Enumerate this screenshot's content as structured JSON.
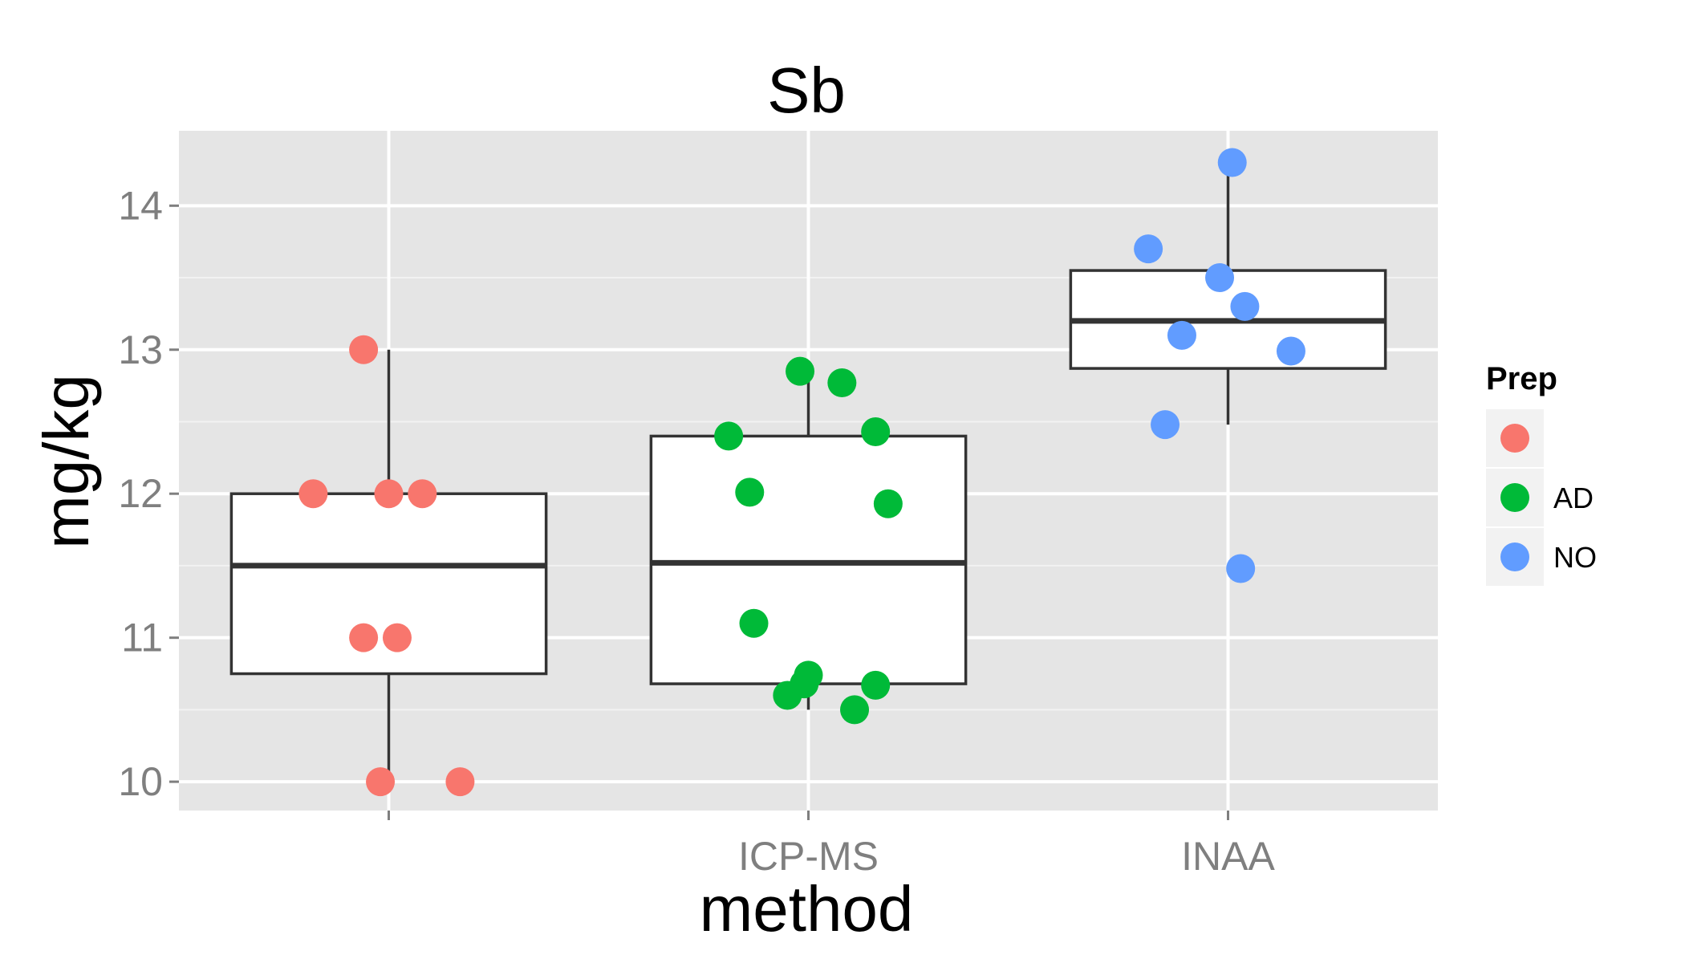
{
  "chart_data": {
    "type": "boxplot",
    "title": "Sb",
    "xlabel": "method",
    "ylabel": "mg/kg",
    "categories": [
      "",
      "ICP-MS",
      "INAA"
    ],
    "ylim": [
      9.8,
      14.52
    ],
    "yticks": [
      10,
      11,
      12,
      13,
      14
    ],
    "grid": true,
    "legend": {
      "title": "Prep",
      "position": "right",
      "entries": [
        {
          "label": "",
          "color": "#F8766D"
        },
        {
          "label": "AD",
          "color": "#00BA38"
        },
        {
          "label": "NO",
          "color": "#619CFF"
        }
      ]
    },
    "boxes": [
      {
        "category": "",
        "min": 10.0,
        "q1": 10.75,
        "median": 11.5,
        "q3": 12.0,
        "max": 13.0
      },
      {
        "category": "ICP-MS",
        "min": 10.5,
        "q1": 10.68,
        "median": 11.52,
        "q3": 12.4,
        "max": 12.85
      },
      {
        "category": "INAA",
        "min": 12.48,
        "q1": 12.87,
        "median": 13.2,
        "q3": 13.55,
        "max": 14.3
      }
    ],
    "series": [
      {
        "prep": "",
        "category": "",
        "color": "#F8766D",
        "points": [
          [
            -0.18,
            12.0
          ],
          [
            0.0,
            12.0
          ],
          [
            0.08,
            12.0
          ],
          [
            -0.06,
            13.0
          ],
          [
            -0.06,
            11.0
          ],
          [
            0.02,
            11.0
          ],
          [
            -0.02,
            10.0
          ],
          [
            0.17,
            10.0
          ]
        ]
      },
      {
        "prep": "AD",
        "category": "ICP-MS",
        "color": "#00BA38",
        "points": [
          [
            -0.19,
            12.4
          ],
          [
            -0.14,
            12.01
          ],
          [
            0.16,
            12.43
          ],
          [
            0.19,
            11.93
          ],
          [
            -0.13,
            11.1
          ],
          [
            -0.02,
            12.85
          ],
          [
            0.08,
            12.77
          ],
          [
            -0.05,
            10.6
          ],
          [
            -0.01,
            10.68
          ],
          [
            0.0,
            10.74
          ],
          [
            0.16,
            10.67
          ],
          [
            0.11,
            10.5
          ]
        ]
      },
      {
        "prep": "NO",
        "category": "INAA",
        "color": "#619CFF",
        "points": [
          [
            0.01,
            14.3
          ],
          [
            -0.19,
            13.7
          ],
          [
            -0.02,
            13.5
          ],
          [
            0.04,
            13.3
          ],
          [
            -0.11,
            13.1
          ],
          [
            0.15,
            12.99
          ],
          [
            -0.15,
            12.48
          ],
          [
            0.03,
            11.48
          ]
        ]
      }
    ]
  }
}
